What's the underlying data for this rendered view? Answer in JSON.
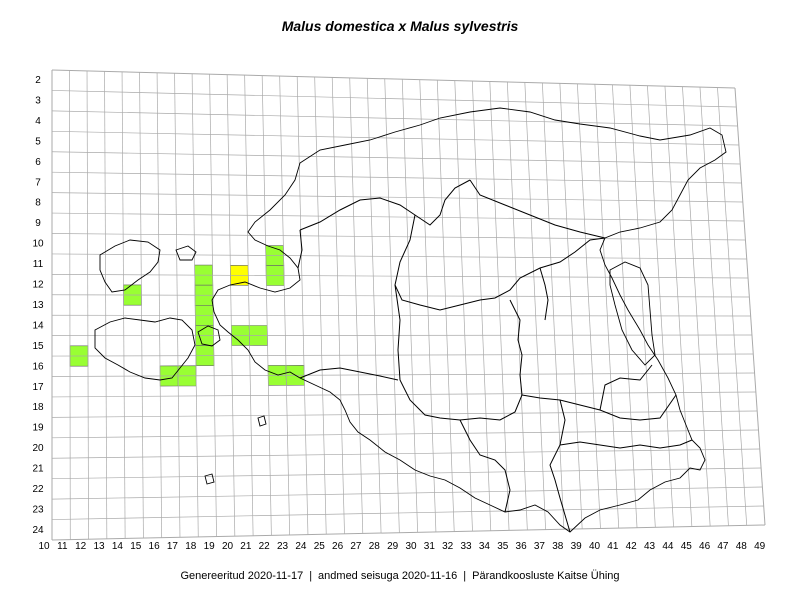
{
  "title": "Malus domestica x Malus sylvestris",
  "footer": {
    "generated": "Genereeritud 2020-11-17",
    "data_state": "andmed seisuga 2020-11-16",
    "source": "Pärandkoosluste Kaitse Ühing"
  },
  "grid": {
    "row_labels": [
      "2",
      "3",
      "4",
      "5",
      "6",
      "7",
      "8",
      "9",
      "10",
      "11",
      "12",
      "13",
      "14",
      "15",
      "16",
      "17",
      "18",
      "19",
      "20",
      "21",
      "22",
      "23",
      "24"
    ],
    "col_labels": [
      "10",
      "11",
      "12",
      "13",
      "14",
      "15",
      "16",
      "17",
      "18",
      "19",
      "20",
      "21",
      "22",
      "23",
      "24",
      "25",
      "26",
      "27",
      "28",
      "29",
      "30",
      "31",
      "32",
      "33",
      "34",
      "35",
      "36",
      "37",
      "38",
      "39",
      "40",
      "41",
      "42",
      "43",
      "44",
      "45",
      "46",
      "47",
      "48",
      "49"
    ]
  },
  "colors": {
    "green": "#99ff33",
    "yellow": "#ffff00",
    "grid": "#aaaaaa",
    "outline": "#000000"
  },
  "occupied_cells": [
    {
      "col": 22,
      "row": 10,
      "color": "green"
    },
    {
      "col": 22,
      "row": 11,
      "color": "green"
    },
    {
      "col": 20,
      "row": 11,
      "color": "yellow"
    },
    {
      "col": 18,
      "row": 11,
      "color": "green"
    },
    {
      "col": 14,
      "row": 12,
      "color": "green"
    },
    {
      "col": 18,
      "row": 12,
      "color": "green"
    },
    {
      "col": 18,
      "row": 13,
      "color": "green"
    },
    {
      "col": 18,
      "row": 14,
      "color": "green"
    },
    {
      "col": 20,
      "row": 14,
      "color": "green"
    },
    {
      "col": 21,
      "row": 14,
      "color": "green"
    },
    {
      "col": 11,
      "row": 15,
      "color": "green"
    },
    {
      "col": 18,
      "row": 15,
      "color": "green"
    },
    {
      "col": 16,
      "row": 16,
      "color": "green"
    },
    {
      "col": 17,
      "row": 16,
      "color": "green"
    },
    {
      "col": 22,
      "row": 16,
      "color": "green"
    },
    {
      "col": 23,
      "row": 16,
      "color": "green"
    }
  ]
}
